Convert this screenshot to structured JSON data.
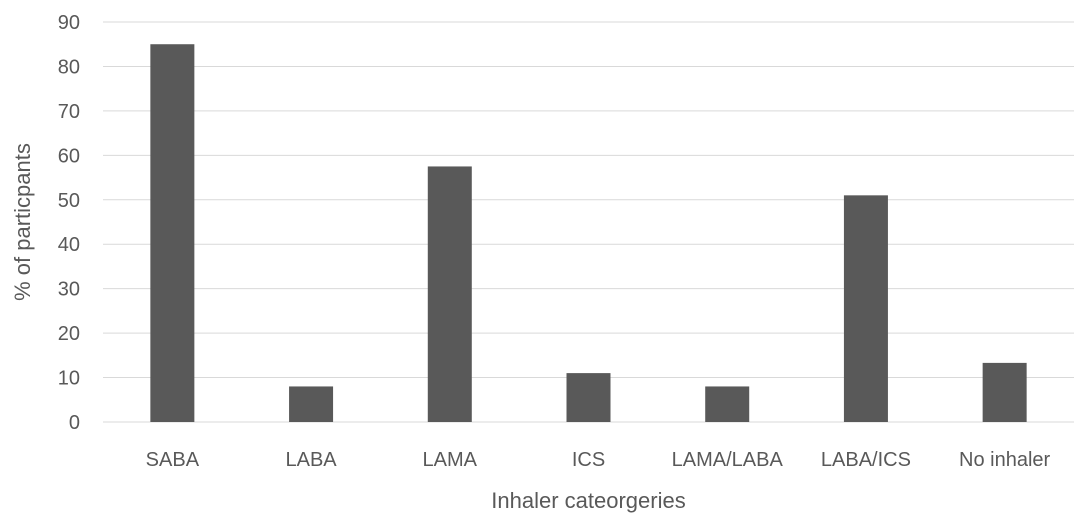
{
  "chart_data": {
    "type": "bar",
    "title": "",
    "xlabel": "Inhaler cateorgeries",
    "ylabel": "% of particpants",
    "categories": [
      "SABA",
      "LABA",
      "LAMA",
      "ICS",
      "LAMA/LABA",
      "LABA/ICS",
      "No inhaler"
    ],
    "values": [
      85,
      8,
      57.5,
      11,
      8,
      51,
      13.3
    ],
    "ylim": [
      0,
      90
    ],
    "yticks": [
      0,
      10,
      20,
      30,
      40,
      50,
      60,
      70,
      80,
      90
    ],
    "grid": true,
    "legend": "none",
    "bar_color": "#595959"
  }
}
